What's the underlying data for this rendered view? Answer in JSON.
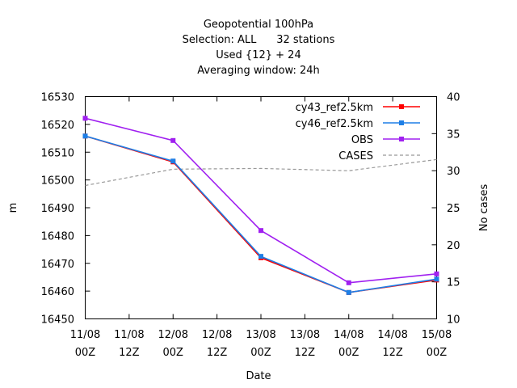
{
  "chart_data": {
    "type": "line",
    "title_lines": [
      "Geopotential 100hPa",
      "Selection: ALL      32 stations",
      "Used {12} + 24",
      "Averaging window: 24h"
    ],
    "xlabel": "Date",
    "ylabel": "m",
    "y2label": "No cases",
    "x_ticks": [
      {
        "line1": "11/08",
        "line2": "00Z"
      },
      {
        "line1": "11/08",
        "line2": "12Z"
      },
      {
        "line1": "12/08",
        "line2": "00Z"
      },
      {
        "line1": "12/08",
        "line2": "12Z"
      },
      {
        "line1": "13/08",
        "line2": "00Z"
      },
      {
        "line1": "13/08",
        "line2": "12Z"
      },
      {
        "line1": "14/08",
        "line2": "00Z"
      },
      {
        "line1": "14/08",
        "line2": "12Z"
      },
      {
        "line1": "15/08",
        "line2": "00Z"
      }
    ],
    "x_range_hours": [
      0,
      96
    ],
    "ylim": [
      16450,
      16530
    ],
    "y_ticks": [
      16450,
      16460,
      16470,
      16480,
      16490,
      16500,
      16510,
      16520,
      16530
    ],
    "y2lim": [
      10,
      40
    ],
    "y2_ticks": [
      10,
      15,
      20,
      25,
      30,
      35,
      40
    ],
    "legend_position": "top-right",
    "series": [
      {
        "name": "cy43_ref2.5km",
        "color": "#ff0000",
        "axis": "y1",
        "marker": true,
        "dashed": false,
        "x": [
          0,
          24,
          48,
          72,
          96
        ],
        "values": [
          16515.8,
          16506.5,
          16472.0,
          16459.5,
          16464.0
        ]
      },
      {
        "name": "cy46_ref2.5km",
        "color": "#1e7fe6",
        "axis": "y1",
        "marker": true,
        "dashed": false,
        "x": [
          0,
          24,
          48,
          72,
          96
        ],
        "values": [
          16515.8,
          16506.8,
          16472.5,
          16459.5,
          16464.3
        ]
      },
      {
        "name": "OBS",
        "color": "#a020f0",
        "axis": "y1",
        "marker": true,
        "dashed": false,
        "x": [
          0,
          24,
          48,
          72,
          96
        ],
        "values": [
          16522.2,
          16514.2,
          16481.8,
          16463.0,
          16466.2
        ]
      },
      {
        "name": "CASES",
        "color": "#999999",
        "axis": "y2",
        "marker": false,
        "dashed": true,
        "x": [
          0,
          24,
          48,
          72,
          96
        ],
        "values": [
          28.0,
          30.2,
          30.3,
          30.0,
          31.5
        ]
      }
    ]
  }
}
